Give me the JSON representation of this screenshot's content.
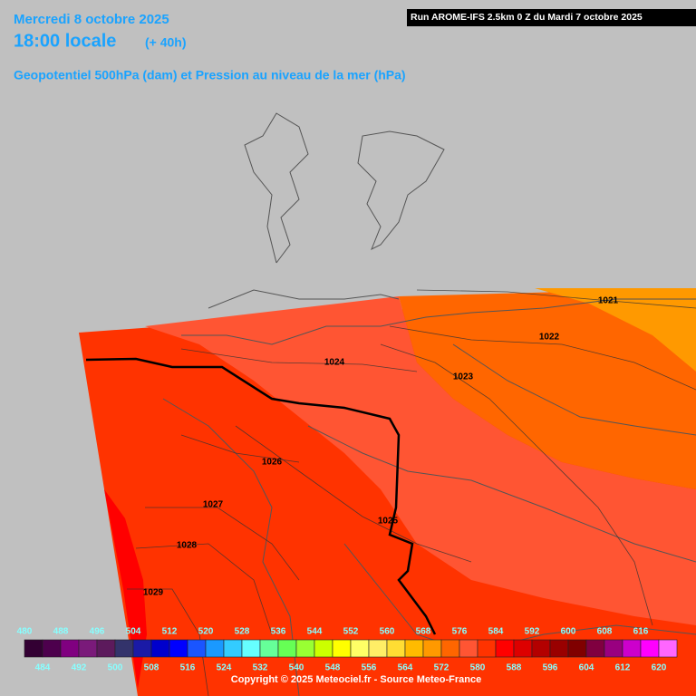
{
  "header": {
    "date": "Mercredi 8 octobre 2025",
    "time": "18:00 locale",
    "lead": "(+ 40h)",
    "title": "Geopotentiel 500hPa (dam) et Pression au niveau de la mer (hPa)",
    "run": "Run AROME-IFS 2.5km 0 Z du Mardi 7 octobre 2025"
  },
  "isobars": [
    "1021",
    "1022",
    "1023",
    "1024",
    "1025",
    "1026",
    "1027",
    "1028",
    "1029"
  ],
  "legend": {
    "top_labels": [
      "480",
      "488",
      "496",
      "504",
      "512",
      "520",
      "528",
      "536",
      "544",
      "552",
      "560",
      "568",
      "576",
      "584",
      "592",
      "600",
      "608",
      "616"
    ],
    "bottom_labels": [
      "484",
      "492",
      "500",
      "508",
      "516",
      "524",
      "532",
      "540",
      "548",
      "556",
      "564",
      "572",
      "580",
      "588",
      "596",
      "604",
      "612",
      "620"
    ],
    "colors": [
      "#330033",
      "#4d004d",
      "#800080",
      "#7a1a7a",
      "#5c1a5c",
      "#33336b",
      "#1a1aa6",
      "#0000cc",
      "#0000ff",
      "#1a55ff",
      "#1a99ff",
      "#33ccff",
      "#66ffff",
      "#66ff99",
      "#66ff55",
      "#99ff33",
      "#ccff00",
      "#ffff00",
      "#ffff66",
      "#ffee66",
      "#ffdd33",
      "#ffbb00",
      "#ff9900",
      "#ff6600",
      "#ff5533",
      "#ff3300",
      "#ff0000",
      "#dd0000",
      "#b30000",
      "#990000",
      "#800000",
      "#800040",
      "#990080",
      "#cc00cc",
      "#ff00ff",
      "#ff66ff"
    ]
  },
  "copyright": "Copyright © 2025 Meteociel.fr - Source Meteo-France"
}
